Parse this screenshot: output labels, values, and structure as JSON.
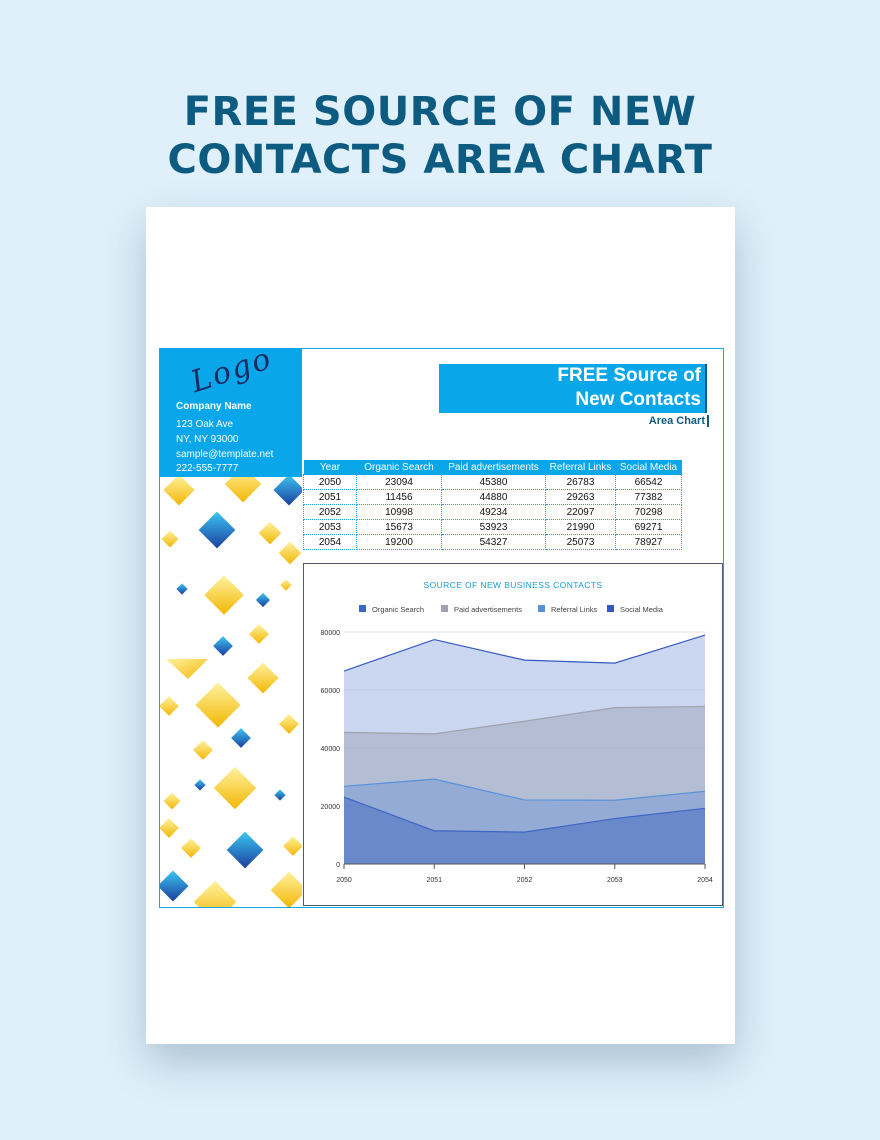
{
  "banner": {
    "line1": "FREE SOURCE OF NEW",
    "line2": "CONTACTS AREA CHART"
  },
  "sidebar": {
    "logo": "Logo",
    "company_name": "Company Name",
    "address1": "123 Oak Ave",
    "address2": "NY, NY 93000",
    "email": "sample@template.net",
    "phone": "222-555-7777"
  },
  "doc_header": {
    "title_line1": "FREE Source of",
    "title_line2": "New Contacts",
    "subtitle": "Area Chart"
  },
  "table": {
    "headers": [
      "Year",
      "Organic Search",
      "Paid advertisements",
      "Referral Links",
      "Social Media"
    ],
    "rows": [
      [
        "2050",
        "23094",
        "45380",
        "26783",
        "66542"
      ],
      [
        "2051",
        "11456",
        "44880",
        "29263",
        "77382"
      ],
      [
        "2052",
        "10998",
        "49234",
        "22097",
        "70298"
      ],
      [
        "2053",
        "15673",
        "53923",
        "21990",
        "69271"
      ],
      [
        "2054",
        "19200",
        "54327",
        "25073",
        "78927"
      ]
    ]
  },
  "colors": {
    "accent": "#0aa6ea",
    "title": "#0d5b80",
    "chart_title": "#1a9bd7"
  },
  "chart_data": {
    "type": "area",
    "title": "SOURCE OF NEW BUSINESS CONTACTS",
    "categories": [
      "2050",
      "2051",
      "2052",
      "2053",
      "2054"
    ],
    "series": [
      {
        "name": "Organic Search",
        "values": [
          23094,
          11456,
          10998,
          15673,
          19200
        ],
        "color": "#3f66c4"
      },
      {
        "name": "Paid advertisements",
        "values": [
          45380,
          44880,
          49234,
          53923,
          54327
        ],
        "color": "#9ea3ad"
      },
      {
        "name": "Referral Links",
        "values": [
          26783,
          29263,
          22097,
          21990,
          25073
        ],
        "color": "#5691d9"
      },
      {
        "name": "Social Media",
        "values": [
          66542,
          77382,
          70298,
          69271,
          78927
        ],
        "color": "#3559c2"
      }
    ],
    "ylim": [
      0,
      80000
    ],
    "yticks": [
      "0",
      "20000",
      "40000",
      "60000",
      "80000"
    ],
    "grid": true,
    "legend": "top"
  }
}
